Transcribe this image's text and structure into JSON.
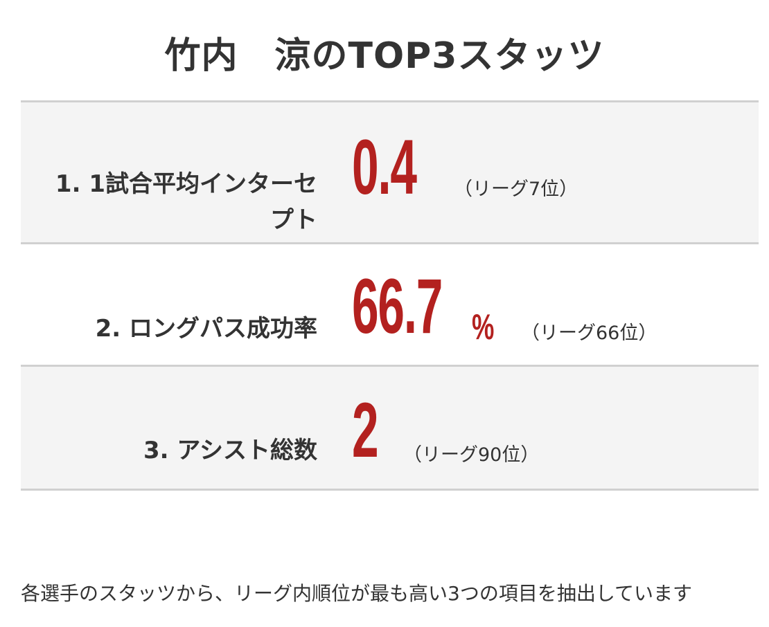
{
  "title": "竹内　涼のTOP3スタッツ",
  "stats": [
    {
      "label": "1. 1試合平均インターセプト",
      "value": "0.4",
      "unit": "",
      "rank": "（リーグ7位）"
    },
    {
      "label": "2. ロングパス成功率",
      "value": "66.7",
      "unit": "%",
      "rank": "（リーグ66位）"
    },
    {
      "label": "3. アシスト総数",
      "value": "2",
      "unit": "",
      "rank": "（リーグ90位）"
    }
  ],
  "footnote": "各選手のスタッツから、リーグ内順位が最も高い3つの項目を抽出しています",
  "colors": {
    "accent": "#b3211f",
    "row_shade": "#f4f4f4",
    "divider": "#d0d0d0",
    "text": "#333333"
  }
}
